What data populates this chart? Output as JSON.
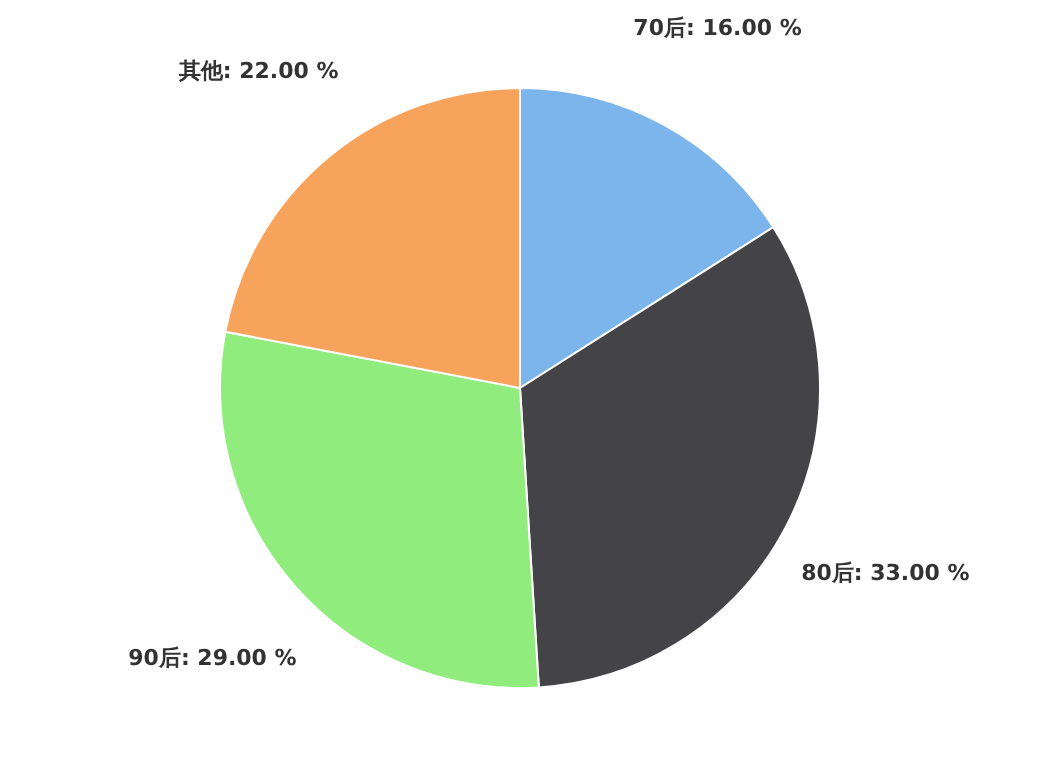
{
  "chart_data": {
    "type": "pie",
    "categories": [
      "70后",
      "80后",
      "90后",
      "其他"
    ],
    "values": [
      16,
      33,
      29,
      22
    ],
    "value_labels": [
      "16.00 %",
      "33.00 %",
      "29.00 %",
      "22.00 %"
    ],
    "colors": [
      "#7cb5ec",
      "#434348",
      "#90ed7d",
      "#f7a35c"
    ]
  }
}
